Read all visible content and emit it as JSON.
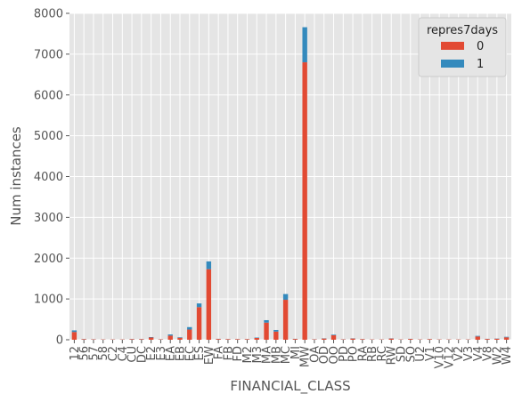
{
  "chart_data": {
    "type": "bar",
    "stacked": true,
    "title": "",
    "xlabel": "FINANCIAL_CLASS",
    "ylabel": "Num instances",
    "ylim": [
      0,
      8000
    ],
    "yticks": [
      0,
      1000,
      2000,
      3000,
      4000,
      5000,
      6000,
      7000,
      8000
    ],
    "grid": true,
    "legend": {
      "title": "repres7days",
      "placement": "top-right"
    },
    "categories": [
      "12",
      "56",
      "57",
      "58",
      "C2",
      "C4",
      "CU",
      "DC",
      "E2",
      "E3",
      "EA",
      "EB",
      "EC",
      "ES",
      "EW",
      "FA",
      "FB",
      "FD",
      "M2",
      "M3",
      "MA",
      "MB",
      "MC",
      "MI",
      "MW",
      "OA",
      "OD",
      "OO",
      "PD",
      "PO",
      "RA",
      "RB",
      "RC",
      "RW",
      "SD",
      "SO",
      "U2",
      "V1",
      "V10",
      "V12",
      "V2",
      "V3",
      "V4",
      "V8",
      "W2",
      "W4"
    ],
    "series": [
      {
        "name": "0",
        "color": "#E24A33",
        "values": [
          190,
          15,
          10,
          8,
          8,
          8,
          15,
          15,
          55,
          10,
          100,
          50,
          250,
          800,
          1730,
          20,
          15,
          15,
          15,
          45,
          420,
          200,
          980,
          20,
          6800,
          10,
          30,
          110,
          10,
          30,
          15,
          8,
          8,
          30,
          8,
          20,
          8,
          15,
          8,
          8,
          8,
          8,
          80,
          20,
          25,
          60
        ]
      },
      {
        "name": "1",
        "color": "#348ABD",
        "values": [
          40,
          3,
          2,
          1,
          1,
          1,
          3,
          3,
          10,
          2,
          30,
          12,
          60,
          90,
          190,
          3,
          2,
          2,
          2,
          10,
          60,
          40,
          140,
          3,
          860,
          2,
          5,
          15,
          2,
          5,
          2,
          1,
          1,
          5,
          1,
          3,
          1,
          2,
          1,
          1,
          1,
          1,
          15,
          3,
          5,
          12
        ]
      }
    ]
  }
}
